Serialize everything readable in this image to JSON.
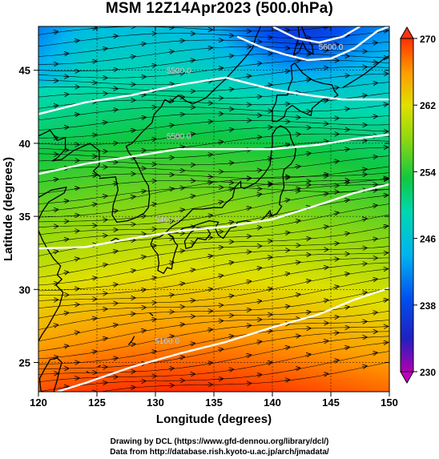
{
  "title": "MSM 12Z14Apr2023 (500.0hPa)",
  "axes": {
    "xlabel": "Longitude (degrees)",
    "ylabel": "Latitude  (degrees)",
    "xlim": [
      120,
      150
    ],
    "ylim": [
      23,
      48
    ],
    "xticks": [
      "120",
      "125",
      "130",
      "135",
      "140",
      "145",
      "150"
    ],
    "yticks": [
      "25",
      "30",
      "35",
      "40",
      "45"
    ]
  },
  "colorbar": {
    "min": 230,
    "max": 270,
    "ticks": [
      "230",
      "238",
      "246",
      "254",
      "262",
      "270"
    ]
  },
  "contours": [
    {
      "label": "5100.0",
      "points": [
        [
          120,
          22.6
        ],
        [
          124,
          23.6
        ],
        [
          128,
          24.7
        ],
        [
          132,
          25.6
        ],
        [
          136,
          26.4
        ],
        [
          140,
          27.4
        ],
        [
          144,
          28.3
        ],
        [
          147,
          29.3
        ],
        [
          150,
          30.1
        ]
      ]
    },
    {
      "label": "5400.0",
      "points": [
        [
          120,
          32.8
        ],
        [
          124,
          32.9
        ],
        [
          128,
          33.5
        ],
        [
          132,
          34.0
        ],
        [
          136,
          34.3
        ],
        [
          140,
          34.8
        ],
        [
          144,
          35.8
        ],
        [
          147,
          36.6
        ],
        [
          150,
          37.2
        ]
      ]
    },
    {
      "label": "5500.0",
      "points": [
        [
          120,
          37.9
        ],
        [
          124,
          38.6
        ],
        [
          128,
          39.1
        ],
        [
          132,
          39.6
        ],
        [
          136,
          39.6
        ],
        [
          140,
          39.6
        ],
        [
          144,
          39.9
        ],
        [
          147,
          40.3
        ],
        [
          150,
          40.6
        ]
      ]
    },
    {
      "label": "5500.0",
      "points": [
        [
          120,
          42.0
        ],
        [
          124,
          42.8
        ],
        [
          128,
          43.3
        ],
        [
          132,
          44.0
        ],
        [
          136,
          44.5
        ],
        [
          140,
          43.7
        ],
        [
          143,
          43.3
        ],
        [
          146,
          43.0
        ],
        [
          150,
          43.0
        ]
      ]
    },
    {
      "label": "5600.0",
      "points": [
        [
          137,
          47.3
        ],
        [
          139,
          46.6
        ],
        [
          141,
          46.1
        ],
        [
          143,
          45.7
        ],
        [
          145,
          45.8
        ],
        [
          147,
          46.5
        ],
        [
          149,
          47.7
        ],
        [
          150,
          48.0
        ]
      ]
    },
    {
      "label": "",
      "points": [
        [
          140,
          48.0
        ],
        [
          142,
          47.2
        ],
        [
          144,
          46.9
        ],
        [
          146,
          47.3
        ],
        [
          147.5,
          48.0
        ]
      ]
    }
  ],
  "contour_labels": [
    {
      "text": "5100.0",
      "at": [
        131,
        26.3
      ]
    },
    {
      "text": "5400.0",
      "at": [
        131,
        34.6
      ]
    },
    {
      "text": "5500.0",
      "at": [
        132,
        40.3
      ]
    },
    {
      "text": "5500.0",
      "at": [
        132,
        44.8
      ]
    },
    {
      "text": "5600.0",
      "at": [
        145,
        46.4
      ]
    }
  ],
  "colors": {
    "background": "#ffffff",
    "contour": "#ffffff",
    "streamline": "#000000",
    "land_outline": "#000000",
    "gridline": "#000000"
  },
  "credits": [
    "Drawing by DCL (https://www.gfd-dennou.org/library/dcl/)",
    "Data from http://database.rish.kyoto-u.ac.jp/arch/jmadata/"
  ]
}
